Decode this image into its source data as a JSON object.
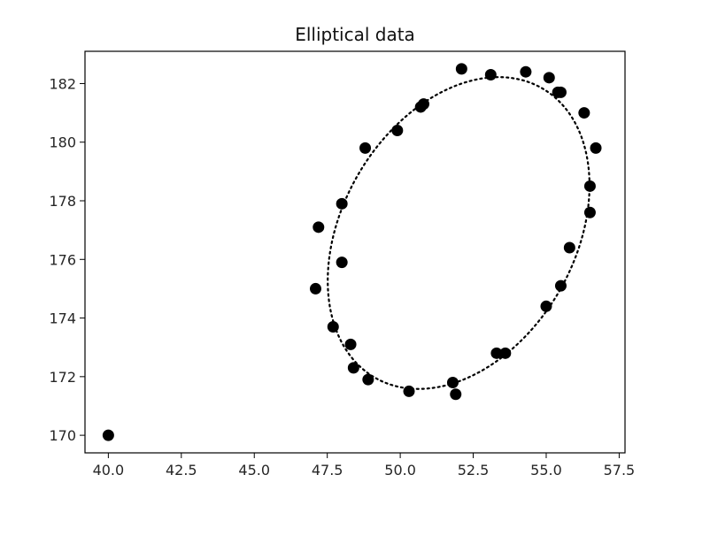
{
  "chart_data": {
    "type": "scatter",
    "title": "Elliptical data",
    "xlabel": "",
    "ylabel": "",
    "xlim": [
      39.2,
      57.7
    ],
    "ylim": [
      169.4,
      183.1
    ],
    "x_ticks": [
      40.0,
      42.5,
      45.0,
      47.5,
      50.0,
      52.5,
      55.0,
      57.5
    ],
    "x_tick_labels": [
      "40.0",
      "42.5",
      "45.0",
      "47.5",
      "50.0",
      "52.5",
      "55.0",
      "57.5"
    ],
    "y_ticks": [
      170,
      172,
      174,
      176,
      178,
      180,
      182
    ],
    "y_tick_labels": [
      "170",
      "172",
      "174",
      "176",
      "178",
      "180",
      "182"
    ],
    "grid": false,
    "points": [
      {
        "x": 40.0,
        "y": 170.0
      },
      {
        "x": 47.1,
        "y": 175.0
      },
      {
        "x": 47.2,
        "y": 177.1
      },
      {
        "x": 47.7,
        "y": 173.7
      },
      {
        "x": 48.0,
        "y": 175.9
      },
      {
        "x": 48.0,
        "y": 177.9
      },
      {
        "x": 48.3,
        "y": 173.1
      },
      {
        "x": 48.4,
        "y": 172.3
      },
      {
        "x": 48.8,
        "y": 179.8
      },
      {
        "x": 48.9,
        "y": 171.9
      },
      {
        "x": 49.9,
        "y": 180.4
      },
      {
        "x": 50.3,
        "y": 171.5
      },
      {
        "x": 50.7,
        "y": 181.2
      },
      {
        "x": 50.8,
        "y": 181.3
      },
      {
        "x": 51.8,
        "y": 171.8
      },
      {
        "x": 51.9,
        "y": 171.4
      },
      {
        "x": 52.1,
        "y": 182.5
      },
      {
        "x": 53.1,
        "y": 182.3
      },
      {
        "x": 53.3,
        "y": 172.8
      },
      {
        "x": 53.6,
        "y": 172.8
      },
      {
        "x": 54.3,
        "y": 182.4
      },
      {
        "x": 55.0,
        "y": 174.4
      },
      {
        "x": 55.1,
        "y": 182.2
      },
      {
        "x": 55.4,
        "y": 181.7
      },
      {
        "x": 55.5,
        "y": 181.7
      },
      {
        "x": 55.5,
        "y": 175.1
      },
      {
        "x": 55.8,
        "y": 176.4
      },
      {
        "x": 56.3,
        "y": 181.0
      },
      {
        "x": 56.5,
        "y": 178.5
      },
      {
        "x": 56.5,
        "y": 177.6
      },
      {
        "x": 56.7,
        "y": 179.8
      }
    ],
    "fit_ellipse": {
      "center_x": 52.0,
      "center_y": 176.9,
      "semi_axis_x": 4.6,
      "semi_axis_y": 5.7,
      "rotation_deg": -30,
      "line_style": "dotted"
    },
    "colors": {
      "points": "#000000",
      "ellipse": "#000000",
      "axes": "#000000"
    }
  }
}
